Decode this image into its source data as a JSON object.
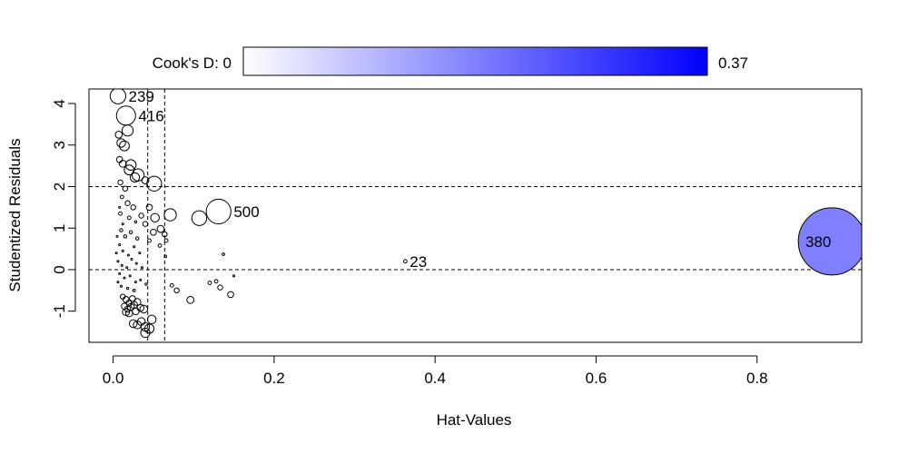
{
  "chart_data": {
    "type": "scatter",
    "xlabel": "Hat-Values",
    "ylabel": "Studentized Residuals",
    "xlim": [
      -0.03,
      0.93
    ],
    "ylim": [
      -1.75,
      4.35
    ],
    "x_ticks": [
      0.0,
      0.2,
      0.4,
      0.6,
      0.8
    ],
    "x_tick_labels": [
      "0.0",
      "0.2",
      "0.4",
      "0.6",
      "0.8"
    ],
    "y_ticks": [
      -1,
      0,
      1,
      2,
      3,
      4
    ],
    "y_tick_labels": [
      "-1",
      "0",
      "1",
      "2",
      "3",
      "4"
    ],
    "grid": false,
    "legend": {
      "label": "Cook's D: 0",
      "max_label": "0.37",
      "min_color": "#ffffff",
      "max_color": "#0000ff",
      "placement": "top"
    },
    "reference_lines": {
      "vertical_x": [
        0.043,
        0.064
      ],
      "horizontal_y": [
        2,
        0
      ]
    },
    "labeled_points": [
      {
        "label": "239",
        "x": 0.006,
        "y": 4.18,
        "cooks_d": 0.02
      },
      {
        "label": "416",
        "x": 0.016,
        "y": 3.71,
        "cooks_d": 0.03
      },
      {
        "label": "500",
        "x": 0.131,
        "y": 1.4,
        "cooks_d": 0.05
      },
      {
        "label": "23",
        "x": 0.363,
        "y": 0.2,
        "cooks_d": 0.001
      },
      {
        "label": "380",
        "x": 0.893,
        "y": 0.68,
        "cooks_d": 0.37
      }
    ],
    "points": [
      {
        "x": 0.007,
        "y": 3.25,
        "d": 0.004
      },
      {
        "x": 0.01,
        "y": 3.05,
        "d": 0.006
      },
      {
        "x": 0.014,
        "y": 2.98,
        "d": 0.008
      },
      {
        "x": 0.018,
        "y": 3.35,
        "d": 0.01
      },
      {
        "x": 0.008,
        "y": 2.65,
        "d": 0.003
      },
      {
        "x": 0.012,
        "y": 2.55,
        "d": 0.004
      },
      {
        "x": 0.02,
        "y": 2.4,
        "d": 0.008
      },
      {
        "x": 0.022,
        "y": 2.52,
        "d": 0.009
      },
      {
        "x": 0.027,
        "y": 2.22,
        "d": 0.007
      },
      {
        "x": 0.031,
        "y": 2.28,
        "d": 0.012
      },
      {
        "x": 0.04,
        "y": 2.15,
        "d": 0.004
      },
      {
        "x": 0.051,
        "y": 2.07,
        "d": 0.018
      },
      {
        "x": 0.009,
        "y": 2.1,
        "d": 0.002
      },
      {
        "x": 0.015,
        "y": 1.95,
        "d": 0.002
      },
      {
        "x": 0.011,
        "y": 1.75,
        "d": 0.001
      },
      {
        "x": 0.018,
        "y": 1.6,
        "d": 0.002
      },
      {
        "x": 0.025,
        "y": 1.5,
        "d": 0.002
      },
      {
        "x": 0.009,
        "y": 1.35,
        "d": 0.001
      },
      {
        "x": 0.02,
        "y": 1.25,
        "d": 0.001
      },
      {
        "x": 0.035,
        "y": 1.3,
        "d": 0.002
      },
      {
        "x": 0.04,
        "y": 1.1,
        "d": 0.002
      },
      {
        "x": 0.052,
        "y": 1.25,
        "d": 0.006
      },
      {
        "x": 0.059,
        "y": 0.98,
        "d": 0.004
      },
      {
        "x": 0.071,
        "y": 1.32,
        "d": 0.012
      },
      {
        "x": 0.107,
        "y": 1.24,
        "d": 0.018
      },
      {
        "x": 0.05,
        "y": 0.9,
        "d": 0.003
      },
      {
        "x": 0.064,
        "y": 0.85,
        "d": 0.002
      },
      {
        "x": 0.066,
        "y": 0.7,
        "d": 0.001
      },
      {
        "x": 0.045,
        "y": 0.7,
        "d": 0.001
      },
      {
        "x": 0.058,
        "y": 0.58,
        "d": 0.001
      },
      {
        "x": 0.065,
        "y": 0.32,
        "d": 0.0005
      },
      {
        "x": 0.137,
        "y": 0.37,
        "d": 0.0005
      },
      {
        "x": 0.01,
        "y": 0.95,
        "d": 0.0008
      },
      {
        "x": 0.015,
        "y": 0.8,
        "d": 0.0008
      },
      {
        "x": 0.022,
        "y": 0.9,
        "d": 0.0008
      },
      {
        "x": 0.03,
        "y": 0.75,
        "d": 0.0008
      },
      {
        "x": 0.008,
        "y": 0.6,
        "d": 0.0003
      },
      {
        "x": 0.012,
        "y": 0.45,
        "d": 0.0003
      },
      {
        "x": 0.019,
        "y": 0.35,
        "d": 0.0002
      },
      {
        "x": 0.026,
        "y": 0.55,
        "d": 0.0003
      },
      {
        "x": 0.033,
        "y": 0.4,
        "d": 0.0003
      },
      {
        "x": 0.006,
        "y": 0.2,
        "d": 0.0001
      },
      {
        "x": 0.011,
        "y": 0.1,
        "d": 0.0001
      },
      {
        "x": 0.017,
        "y": 0.05,
        "d": 0.0001
      },
      {
        "x": 0.023,
        "y": 0.25,
        "d": 0.0001
      },
      {
        "x": 0.029,
        "y": 0.15,
        "d": 0.0001
      },
      {
        "x": 0.036,
        "y": 0.05,
        "d": 0.0001
      },
      {
        "x": 0.008,
        "y": -0.1,
        "d": 0.0001
      },
      {
        "x": 0.014,
        "y": -0.2,
        "d": 0.0001
      },
      {
        "x": 0.021,
        "y": -0.15,
        "d": 0.0001
      },
      {
        "x": 0.028,
        "y": -0.3,
        "d": 0.0002
      },
      {
        "x": 0.034,
        "y": -0.25,
        "d": 0.0002
      },
      {
        "x": 0.01,
        "y": -0.4,
        "d": 0.0003
      },
      {
        "x": 0.018,
        "y": -0.45,
        "d": 0.0004
      },
      {
        "x": 0.026,
        "y": -0.5,
        "d": 0.0005
      },
      {
        "x": 0.041,
        "y": -0.35,
        "d": 0.0004
      },
      {
        "x": 0.073,
        "y": -0.38,
        "d": 0.001
      },
      {
        "x": 0.079,
        "y": -0.5,
        "d": 0.002
      },
      {
        "x": 0.096,
        "y": -0.73,
        "d": 0.004
      },
      {
        "x": 0.12,
        "y": -0.32,
        "d": 0.001
      },
      {
        "x": 0.128,
        "y": -0.28,
        "d": 0.001
      },
      {
        "x": 0.133,
        "y": -0.43,
        "d": 0.002
      },
      {
        "x": 0.146,
        "y": -0.6,
        "d": 0.003
      },
      {
        "x": 0.15,
        "y": -0.15,
        "d": 0.0003
      },
      {
        "x": 0.012,
        "y": -0.65,
        "d": 0.002
      },
      {
        "x": 0.016,
        "y": -0.72,
        "d": 0.003
      },
      {
        "x": 0.02,
        "y": -0.8,
        "d": 0.003
      },
      {
        "x": 0.024,
        "y": -0.7,
        "d": 0.003
      },
      {
        "x": 0.014,
        "y": -0.88,
        "d": 0.003
      },
      {
        "x": 0.018,
        "y": -0.95,
        "d": 0.003
      },
      {
        "x": 0.022,
        "y": -0.9,
        "d": 0.004
      },
      {
        "x": 0.026,
        "y": -0.85,
        "d": 0.004
      },
      {
        "x": 0.03,
        "y": -0.78,
        "d": 0.004
      },
      {
        "x": 0.034,
        "y": -0.92,
        "d": 0.004
      },
      {
        "x": 0.016,
        "y": -1.02,
        "d": 0.004
      },
      {
        "x": 0.02,
        "y": -1.05,
        "d": 0.004
      },
      {
        "x": 0.028,
        "y": -1.0,
        "d": 0.004
      },
      {
        "x": 0.038,
        "y": -0.95,
        "d": 0.005
      },
      {
        "x": 0.025,
        "y": -1.3,
        "d": 0.005
      },
      {
        "x": 0.03,
        "y": -1.33,
        "d": 0.005
      },
      {
        "x": 0.035,
        "y": -1.25,
        "d": 0.005
      },
      {
        "x": 0.04,
        "y": -1.38,
        "d": 0.006
      },
      {
        "x": 0.045,
        "y": -1.42,
        "d": 0.007
      },
      {
        "x": 0.04,
        "y": -1.52,
        "d": 0.007
      },
      {
        "x": 0.048,
        "y": -1.2,
        "d": 0.006
      },
      {
        "x": 0.008,
        "y": 1.5,
        "d": 0.0002
      },
      {
        "x": 0.012,
        "y": 1.1,
        "d": 0.0003
      },
      {
        "x": 0.028,
        "y": 1.15,
        "d": 0.0004
      },
      {
        "x": 0.045,
        "y": 1.5,
        "d": 0.003
      },
      {
        "x": 0.004,
        "y": 0.4,
        "d": 0.0001
      },
      {
        "x": 0.005,
        "y": 0.8,
        "d": 0.0002
      },
      {
        "x": 0.006,
        "y": -0.3,
        "d": 0.0001
      }
    ]
  }
}
